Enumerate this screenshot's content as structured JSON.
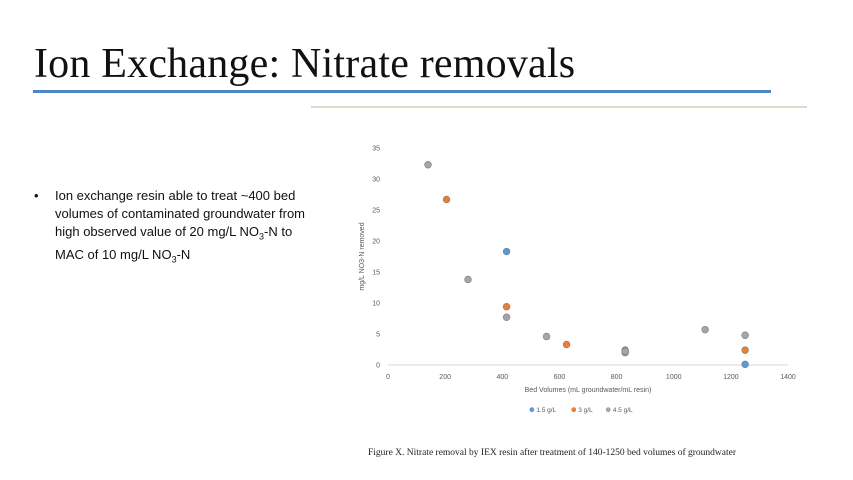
{
  "slide": {
    "title": "Ion Exchange: Nitrate removals",
    "bullet": {
      "text_part1": "Ion exchange resin able to treat ~400 bed volumes of contaminated groundwater from high observed value of 20 mg/L NO",
      "sub1": "3",
      "text_part2": "-N to MAC of 10 mg/L NO",
      "sub2": "3",
      "text_part3": "-N"
    },
    "caption": "Figure X. Nitrate removal by IEX resin after treatment of  140-1250 bed volumes of  groundwater"
  },
  "chart_data": {
    "type": "scatter",
    "title": "",
    "xlabel": "Bed Volumes (mL groundwater/mL resin)",
    "ylabel": "mg/L NO3-N removed",
    "xlim": [
      0,
      1400
    ],
    "ylim": [
      0,
      35
    ],
    "xticks": [
      0,
      200,
      400,
      600,
      800,
      1000,
      1200,
      1400
    ],
    "yticks": [
      0,
      5,
      10,
      15,
      20,
      25,
      30,
      35
    ],
    "grid": false,
    "legend_position": "bottom",
    "series": [
      {
        "name": "1.5 g/L",
        "color": "#5b9bd5",
        "points": [
          [
            415,
            18.3
          ],
          [
            830,
            2.4
          ],
          [
            1250,
            0.1
          ]
        ]
      },
      {
        "name": "3 g/L",
        "color": "#ed7d31",
        "points": [
          [
            205,
            26.7
          ],
          [
            415,
            9.4
          ],
          [
            625,
            3.3
          ],
          [
            830,
            2.0
          ],
          [
            1250,
            2.4
          ]
        ]
      },
      {
        "name": "4.5 g/L",
        "color": "#a5a5a5",
        "points": [
          [
            140,
            32.3
          ],
          [
            280,
            13.8
          ],
          [
            415,
            7.7
          ],
          [
            555,
            4.6
          ],
          [
            830,
            2.2
          ],
          [
            1110,
            5.7
          ],
          [
            1250,
            4.8
          ]
        ]
      }
    ]
  }
}
